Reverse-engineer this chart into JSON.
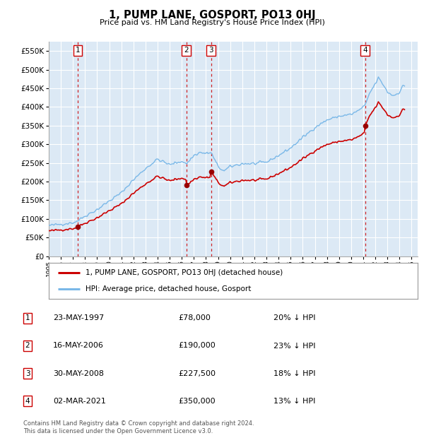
{
  "title": "1, PUMP LANE, GOSPORT, PO13 0HJ",
  "subtitle": "Price paid vs. HM Land Registry's House Price Index (HPI)",
  "legend_line1": "1, PUMP LANE, GOSPORT, PO13 0HJ (detached house)",
  "legend_line2": "HPI: Average price, detached house, Gosport",
  "footnote1": "Contains HM Land Registry data © Crown copyright and database right 2024.",
  "footnote2": "This data is licensed under the Open Government Licence v3.0.",
  "transactions": [
    {
      "num": 1,
      "date": "23-MAY-1997",
      "price": 78000,
      "hpi_pct": "20% ↓ HPI",
      "x_year": 1997.38
    },
    {
      "num": 2,
      "date": "16-MAY-2006",
      "price": 190000,
      "hpi_pct": "23% ↓ HPI",
      "x_year": 2006.37
    },
    {
      "num": 3,
      "date": "30-MAY-2008",
      "price": 227500,
      "hpi_pct": "18% ↓ HPI",
      "x_year": 2008.41
    },
    {
      "num": 4,
      "date": "02-MAR-2021",
      "price": 350000,
      "hpi_pct": "13% ↓ HPI",
      "x_year": 2021.16
    }
  ],
  "hpi_line_color": "#7ab8e8",
  "price_line_color": "#cc0000",
  "dot_color": "#990000",
  "dashed_line_color": "#cc0000",
  "bg_color": "#dce9f5",
  "ylim": [
    0,
    575000
  ],
  "xlim_start": 1995.0,
  "xlim_end": 2025.5,
  "yticks": [
    0,
    50000,
    100000,
    150000,
    200000,
    250000,
    300000,
    350000,
    400000,
    450000,
    500000,
    550000
  ]
}
